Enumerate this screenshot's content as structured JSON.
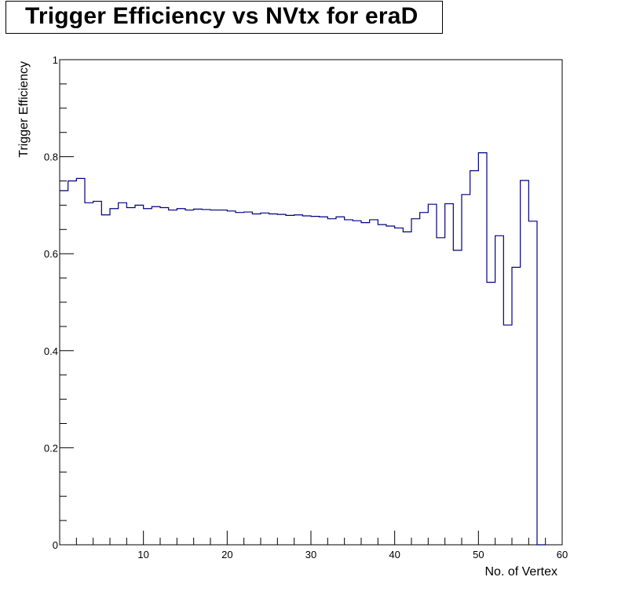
{
  "chart_data": {
    "type": "line",
    "style": "step histogram",
    "title": "Trigger Efficiency vs NVtx for eraD",
    "xlabel": "No. of Vertex",
    "ylabel": "Trigger Efficiency",
    "xlim": [
      0,
      60
    ],
    "ylim": [
      0,
      1
    ],
    "x_ticks": [
      10,
      20,
      30,
      40,
      50,
      60
    ],
    "y_ticks": [
      0,
      0.2,
      0.4,
      0.6,
      0.8,
      1
    ],
    "x_tick_labels": [
      "10",
      "20",
      "30",
      "40",
      "50",
      "60"
    ],
    "y_tick_labels": [
      "0",
      "0.2",
      "0.4",
      "0.6",
      "0.8",
      "1"
    ],
    "line_color": "#000080",
    "bin_width": 1,
    "bin_edges_start": 0,
    "values": [
      0.73,
      0.75,
      0.755,
      0.705,
      0.708,
      0.68,
      0.693,
      0.705,
      0.695,
      0.7,
      0.693,
      0.697,
      0.695,
      0.69,
      0.693,
      0.69,
      0.692,
      0.691,
      0.69,
      0.69,
      0.688,
      0.685,
      0.686,
      0.682,
      0.684,
      0.682,
      0.681,
      0.679,
      0.68,
      0.678,
      0.677,
      0.676,
      0.672,
      0.676,
      0.67,
      0.668,
      0.664,
      0.67,
      0.66,
      0.657,
      0.653,
      0.645,
      0.672,
      0.685,
      0.702,
      0.633,
      0.703,
      0.607,
      0.722,
      0.771,
      0.808,
      0.541,
      0.637,
      0.453,
      0.572,
      0.751,
      0.667,
      0.0
    ]
  }
}
